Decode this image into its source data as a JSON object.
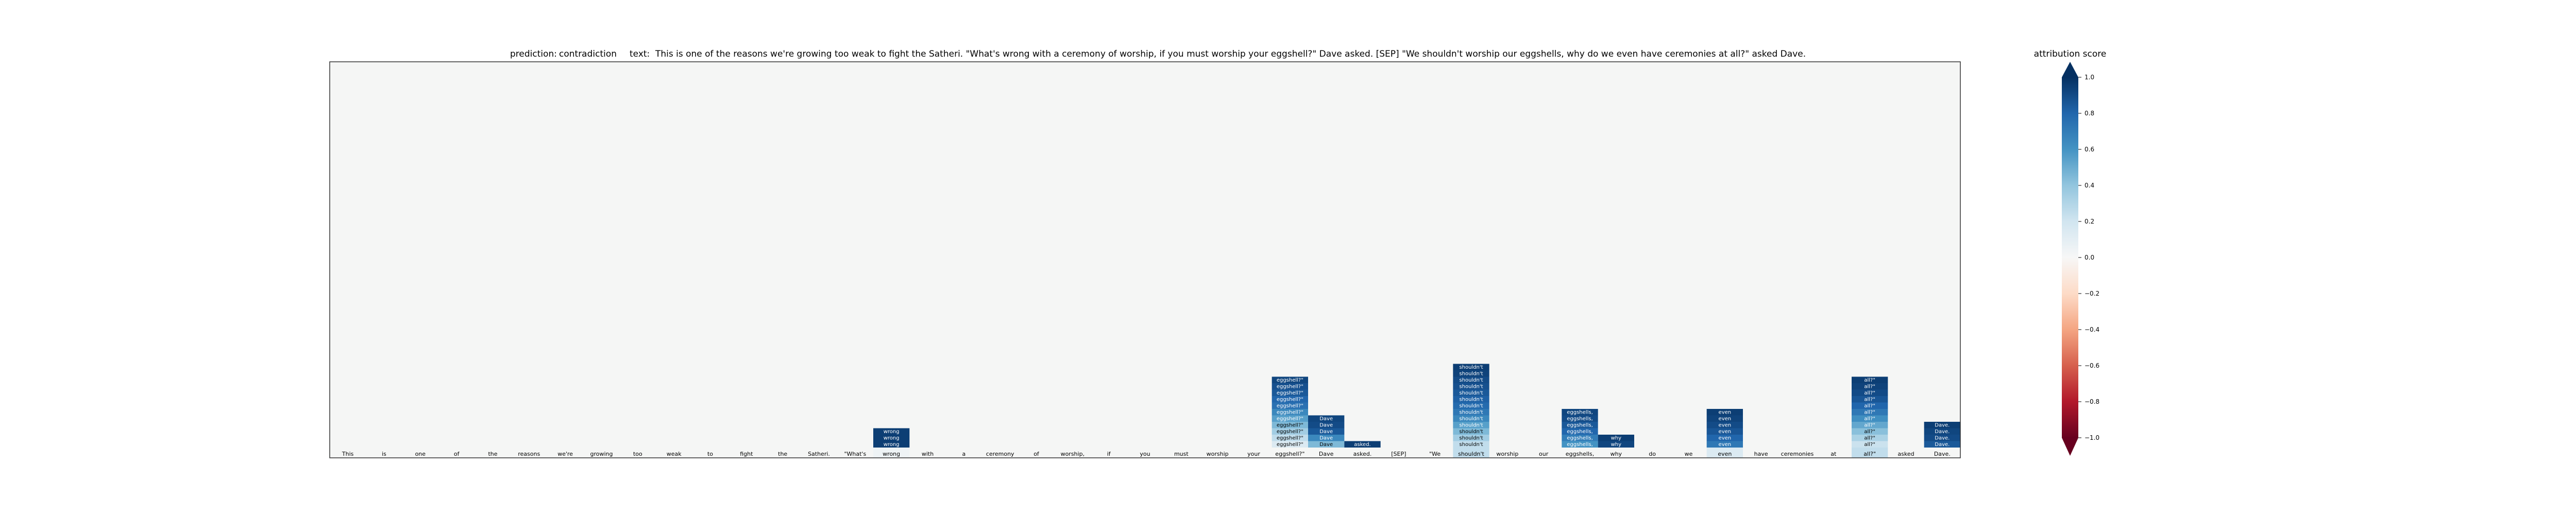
{
  "header": {
    "prediction_label": "prediction:",
    "prediction_value": "contradiction",
    "text_label": "text:",
    "text_value": "This is one of the reasons we're growing too weak to fight the Satheri. \"What's wrong with a ceremony of worship, if you must worship your eggshell?\" Dave asked. [SEP] \"We shouldn't worship our eggshells, why do we even have ceremonies at all?\" asked Dave."
  },
  "colorbar": {
    "title": "attribution score",
    "ticks": [
      "1.0",
      "0.8",
      "0.6",
      "0.4",
      "0.2",
      "0.0",
      "−0.2",
      "−0.4",
      "−0.6",
      "−0.8",
      "−1.0"
    ]
  },
  "chart_data": {
    "type": "heatmap",
    "x_tokens": [
      "This",
      "is",
      "one",
      "of",
      "the",
      "reasons",
      "we're",
      "growing",
      "too",
      "weak",
      "to",
      "fight",
      "the",
      "Satheri.",
      "\"What's",
      "wrong",
      "with",
      "a",
      "ceremony",
      "of",
      "worship,",
      "if",
      "you",
      "must",
      "worship",
      "your",
      "eggshell?\"",
      "Dave",
      "asked.",
      "[SEP]",
      "\"We",
      "shouldn't",
      "worship",
      "our",
      "eggshells,",
      "why",
      "do",
      "we",
      "even",
      "have",
      "ceremonies",
      "at",
      "all?\"",
      "asked",
      "Dave."
    ],
    "n_rows": 60,
    "value_range": [
      -1.0,
      1.0
    ],
    "colormap": "RdBu",
    "background": "#f5f6f5",
    "cells": [
      {
        "col": 15,
        "values": [
          0.95,
          0.95,
          0.95
        ]
      },
      {
        "col": 26,
        "values": [
          0.92,
          0.88,
          0.85,
          0.8,
          0.75,
          0.65,
          0.55,
          0.45,
          0.35,
          0.25,
          0.15
        ]
      },
      {
        "col": 27,
        "values": [
          0.92,
          0.9,
          0.85,
          0.65,
          0.45
        ]
      },
      {
        "col": 28,
        "values": [
          0.95
        ]
      },
      {
        "col": 31,
        "values": [
          0.95,
          0.93,
          0.9,
          0.88,
          0.85,
          0.82,
          0.78,
          0.72,
          0.65,
          0.55,
          0.45,
          0.35,
          0.25
        ]
      },
      {
        "col": 34,
        "values": [
          0.92,
          0.9,
          0.85,
          0.8,
          0.7,
          0.6
        ]
      },
      {
        "col": 35,
        "values": [
          0.95,
          0.92
        ]
      },
      {
        "col": 38,
        "values": [
          0.95,
          0.93,
          0.9,
          0.86,
          0.8,
          0.72
        ]
      },
      {
        "col": 42,
        "values": [
          0.95,
          0.93,
          0.9,
          0.86,
          0.8,
          0.72,
          0.62,
          0.52,
          0.42,
          0.32,
          0.22
        ]
      },
      {
        "col": 44,
        "values": [
          0.95,
          0.92,
          0.9,
          0.85
        ]
      }
    ],
    "bottom_row_values": [
      0,
      0,
      0,
      0,
      0,
      0,
      0,
      0,
      0,
      0,
      0,
      0,
      0,
      0,
      0,
      0.05,
      0,
      0,
      0,
      0,
      0,
      0,
      0,
      0,
      0,
      0,
      0,
      0,
      0,
      0,
      0,
      0.25,
      0,
      0,
      0,
      0,
      0,
      0,
      0.15,
      0,
      0,
      0,
      0.25,
      0,
      0
    ]
  }
}
